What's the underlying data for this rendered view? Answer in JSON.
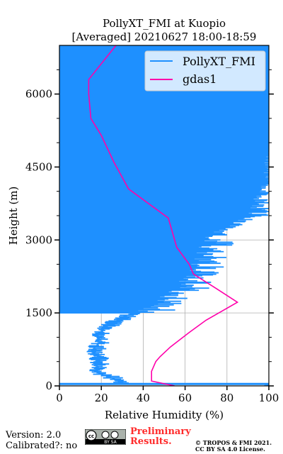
{
  "chart_data": {
    "type": "line",
    "title_line1": "PollyXT_FMI at Kuopio",
    "title_line2": "[Averaged] 20210627 18:00-18:59",
    "xlabel": "Relative Humidity (%)",
    "ylabel": "Height (m)",
    "xlim": [
      0,
      100
    ],
    "ylim": [
      0,
      7000
    ],
    "xticks": [
      0,
      20,
      40,
      60,
      80,
      100
    ],
    "yticks": [
      0,
      1500,
      3000,
      4500,
      6000
    ],
    "grid": true,
    "legend_position": "top-right",
    "series": [
      {
        "name": "PollyXT_FMI",
        "color": "#1e90ff",
        "style": "noisy profile (dense horizontal traces)",
        "points": [
          [
            30,
            50
          ],
          [
            24,
            180
          ],
          [
            20,
            240
          ],
          [
            18,
            300
          ],
          [
            18,
            400
          ],
          [
            18,
            500
          ],
          [
            18,
            600
          ],
          [
            17,
            700
          ],
          [
            17,
            800
          ],
          [
            19,
            900
          ],
          [
            18,
            1000
          ],
          [
            20,
            1100
          ],
          [
            22,
            1200
          ],
          [
            25,
            1300
          ],
          [
            30,
            1400
          ],
          [
            35,
            1500
          ],
          [
            40,
            1600
          ],
          [
            42,
            1700
          ],
          [
            45,
            1800
          ],
          [
            50,
            1900
          ],
          [
            55,
            2000
          ],
          [
            58,
            2100
          ],
          [
            55,
            2200
          ],
          [
            58,
            2300
          ],
          [
            62,
            2400
          ],
          [
            60,
            2500
          ],
          [
            62,
            2600
          ],
          [
            63,
            2700
          ],
          [
            64,
            2800
          ],
          [
            66,
            2900
          ],
          [
            68,
            3000
          ],
          [
            70,
            3100
          ],
          [
            75,
            3200
          ],
          [
            80,
            3300
          ],
          [
            85,
            3400
          ],
          [
            90,
            3500
          ],
          [
            92,
            3800
          ],
          [
            95,
            4000
          ],
          [
            96,
            4300
          ],
          [
            98,
            4600
          ],
          [
            100,
            5000
          ],
          [
            100,
            5500
          ],
          [
            100,
            6000
          ],
          [
            100,
            6500
          ],
          [
            100,
            7000
          ]
        ]
      },
      {
        "name": "gdas1",
        "color": "#ff00aa",
        "style": "line",
        "points": [
          [
            55,
            0
          ],
          [
            44,
            100
          ],
          [
            44,
            300
          ],
          [
            46,
            500
          ],
          [
            48,
            600
          ],
          [
            53,
            800
          ],
          [
            62,
            1100
          ],
          [
            70,
            1350
          ],
          [
            85,
            1720
          ],
          [
            75,
            2000
          ],
          [
            64,
            2300
          ],
          [
            62,
            2500
          ],
          [
            56,
            2850
          ],
          [
            52,
            3450
          ],
          [
            33,
            4050
          ],
          [
            26,
            4600
          ],
          [
            20,
            5150
          ],
          [
            15,
            5500
          ],
          [
            14,
            6000
          ],
          [
            14,
            6300
          ],
          [
            27,
            7000
          ]
        ]
      }
    ]
  },
  "footer": {
    "version": "Version: 2.0",
    "calibrated": "Calibrated?: no",
    "preliminary_line1": "Preliminary",
    "preliminary_line2": "Results.",
    "copyright_line1": "© TROPOS & FMI 2021.",
    "copyright_line2": "CC BY SA 4.0 License.",
    "license_badge_line1": "cc",
    "license_badge_line2": "BY SA"
  }
}
